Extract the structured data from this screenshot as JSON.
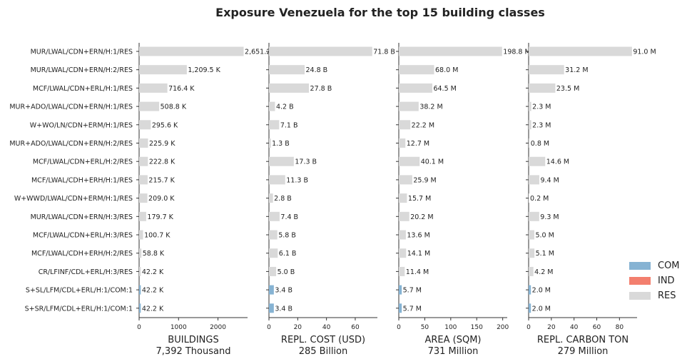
{
  "chart_data": {
    "type": "bar",
    "title": "Exposure Venezuela for the top 15 building classes",
    "categories": [
      "MUR/LWAL/CDN+ERN/H:1/RES",
      "MUR/LWAL/CDN+ERN/H:2/RES",
      "MCF/LWAL/CDN+ERL/H:1/RES",
      "MUR+ADO/LWAL/CDN+ERN/H:1/RES",
      "W+WO/LN/CDN+ERM/H:1/RES",
      "MUR+ADO/LWAL/CDN+ERN/H:2/RES",
      "MCF/LWAL/CDN+ERL/H:2/RES",
      "MCF/LWAL/CDH+ERH/H:1/RES",
      "W+WWD/LWAL/CDN+ERM/H:1/RES",
      "MUR/LWAL/CDN+ERN/H:3/RES",
      "MCF/LWAL/CDN+ERL/H:3/RES",
      "MCF/LWAL/CDH+ERH/H:2/RES",
      "CR/LFINF/CDL+ERL/H:3/RES",
      "S+SL/LFM/CDL+ERL/H:1/COM:1",
      "S+SR/LFM/CDL+ERL/H:1/COM:1"
    ],
    "occupancy": [
      "RES",
      "RES",
      "RES",
      "RES",
      "RES",
      "RES",
      "RES",
      "RES",
      "RES",
      "RES",
      "RES",
      "RES",
      "RES",
      "COM",
      "COM"
    ],
    "panels": [
      {
        "xlabel": "BUILDINGS",
        "total": "7,392 Thousand",
        "values": [
          2651.2,
          1209.5,
          716.4,
          508.8,
          295.6,
          225.9,
          222.8,
          215.7,
          209.0,
          179.7,
          100.7,
          58.8,
          42.2,
          42.2,
          42.2
        ],
        "labels": [
          "2,651.2",
          "1,209.5 K",
          "716.4 K",
          "508.8 K",
          "295.6 K",
          "225.9 K",
          "222.8 K",
          "215.7 K",
          "209.0 K",
          "179.7 K",
          "100.7 K",
          "58.8 K",
          "42.2 K",
          "42.2 K",
          "42.2 K"
        ],
        "xlim": [
          0,
          2750
        ],
        "ticks": [
          0,
          1000,
          2000
        ],
        "tick_labels": [
          "0",
          "1000",
          "2000"
        ]
      },
      {
        "xlabel": "REPL. COST (USD)",
        "total": "285 Billion",
        "values": [
          71.8,
          24.8,
          27.8,
          4.2,
          7.1,
          1.3,
          17.3,
          11.3,
          2.8,
          7.4,
          5.8,
          6.1,
          5.0,
          3.4,
          3.4
        ],
        "labels": [
          "71.8 B",
          "24.8 B",
          "27.8 B",
          "4.2 B",
          "7.1 B",
          "1.3 B",
          "17.3 B",
          "11.3 B",
          "2.8 B",
          "7.4 B",
          "5.8 B",
          "6.1 B",
          "5.0 B",
          "3.4 B",
          "3.4 B"
        ],
        "xlim": [
          0,
          75.4
        ],
        "ticks": [
          0,
          20,
          40,
          60
        ],
        "tick_labels": [
          "0",
          "20",
          "40",
          "60"
        ]
      },
      {
        "xlabel": "AREA (SQM)",
        "total": "731 Million",
        "values": [
          198.8,
          68.0,
          64.5,
          38.2,
          22.2,
          12.7,
          40.1,
          25.9,
          15.7,
          20.2,
          13.6,
          14.1,
          11.4,
          5.7,
          5.7
        ],
        "labels": [
          "198.8 M",
          "68.0 M",
          "64.5 M",
          "38.2 M",
          "22.2 M",
          "12.7 M",
          "40.1 M",
          "25.9 M",
          "15.7 M",
          "20.2 M",
          "13.6 M",
          "14.1 M",
          "11.4 M",
          "5.7 M",
          "5.7 M"
        ],
        "xlim": [
          0,
          208.7
        ],
        "ticks": [
          0,
          50,
          100,
          150,
          200
        ],
        "tick_labels": [
          "0",
          "50",
          "100",
          "150",
          "200"
        ]
      },
      {
        "xlabel": "REPL. CARBON TON",
        "total": "279 Million",
        "values": [
          91.0,
          31.2,
          23.5,
          2.3,
          2.3,
          0.8,
          14.6,
          9.4,
          0.2,
          9.3,
          5.0,
          5.1,
          4.2,
          2.0,
          2.0
        ],
        "labels": [
          "91.0 M",
          "31.2 M",
          "23.5 M",
          "2.3 M",
          "2.3 M",
          "0.8 M",
          "14.6 M",
          "9.4 M",
          "0.2 M",
          "9.3 M",
          "5.0 M",
          "5.1 M",
          "4.2 M",
          "2.0 M",
          "2.0 M"
        ],
        "xlim": [
          0,
          95.5
        ],
        "ticks": [
          0,
          20,
          40,
          60,
          80
        ],
        "tick_labels": [
          "0",
          "20",
          "40",
          "60",
          "80"
        ]
      }
    ],
    "legend": [
      {
        "name": "COM",
        "color": "#86b3d3"
      },
      {
        "name": "IND",
        "color": "#f37f6e"
      },
      {
        "name": "RES",
        "color": "#d9d9d9"
      }
    ],
    "legend_position": "right"
  }
}
